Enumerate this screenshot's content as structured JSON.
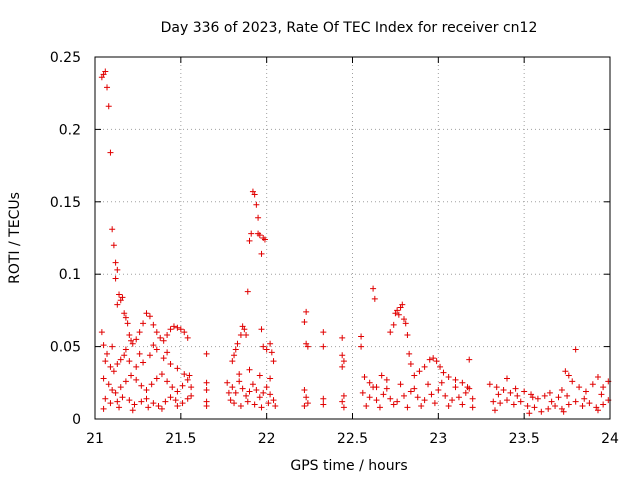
{
  "chart_data": {
    "type": "scatter",
    "title": "Day 336 of 2023, Rate Of TEC Index for receiver cn12",
    "xlabel": "GPS time / hours",
    "ylabel": "ROTI / TECUs",
    "xlim": [
      21,
      24
    ],
    "ylim": [
      0,
      0.25
    ],
    "x_ticks": [
      21,
      21.5,
      22,
      22.5,
      23,
      23.5,
      24
    ],
    "x_tick_labels": [
      "21",
      "21.5",
      "22",
      "22.5",
      "23",
      "23.5",
      "24"
    ],
    "y_ticks": [
      0,
      0.05,
      0.1,
      0.15,
      0.2,
      0.25
    ],
    "y_tick_labels": [
      "0",
      "0.05",
      "0.1",
      "0.15",
      "0.2",
      "0.25"
    ],
    "grid": true,
    "marker": "+",
    "color": "#e00000",
    "series": [
      {
        "name": "ROTI",
        "points": [
          [
            21.04,
            0.236
          ],
          [
            21.05,
            0.238
          ],
          [
            21.06,
            0.24
          ],
          [
            21.07,
            0.229
          ],
          [
            21.08,
            0.216
          ],
          [
            21.09,
            0.184
          ],
          [
            21.1,
            0.131
          ],
          [
            21.11,
            0.12
          ],
          [
            21.12,
            0.108
          ],
          [
            21.13,
            0.103
          ],
          [
            21.12,
            0.097
          ],
          [
            21.14,
            0.086
          ],
          [
            21.15,
            0.082
          ],
          [
            21.16,
            0.084
          ],
          [
            21.13,
            0.079
          ],
          [
            21.17,
            0.073
          ],
          [
            21.18,
            0.07
          ],
          [
            21.19,
            0.066
          ],
          [
            21.2,
            0.058
          ],
          [
            21.21,
            0.054
          ],
          [
            21.22,
            0.052
          ],
          [
            21.24,
            0.055
          ],
          [
            21.26,
            0.06
          ],
          [
            21.28,
            0.066
          ],
          [
            21.3,
            0.073
          ],
          [
            21.32,
            0.071
          ],
          [
            21.34,
            0.065
          ],
          [
            21.36,
            0.06
          ],
          [
            21.38,
            0.056
          ],
          [
            21.4,
            0.054
          ],
          [
            21.42,
            0.058
          ],
          [
            21.44,
            0.062
          ],
          [
            21.46,
            0.064
          ],
          [
            21.48,
            0.063
          ],
          [
            21.5,
            0.062
          ],
          [
            21.52,
            0.06
          ],
          [
            21.54,
            0.056
          ],
          [
            21.04,
            0.06
          ],
          [
            21.05,
            0.051
          ],
          [
            21.07,
            0.045
          ],
          [
            21.06,
            0.04
          ],
          [
            21.09,
            0.036
          ],
          [
            21.11,
            0.033
          ],
          [
            21.13,
            0.038
          ],
          [
            21.15,
            0.041
          ],
          [
            21.17,
            0.044
          ],
          [
            21.2,
            0.04
          ],
          [
            21.24,
            0.036
          ],
          [
            21.28,
            0.039
          ],
          [
            21.32,
            0.044
          ],
          [
            21.36,
            0.048
          ],
          [
            21.4,
            0.042
          ],
          [
            21.44,
            0.038
          ],
          [
            21.48,
            0.035
          ],
          [
            21.52,
            0.031
          ],
          [
            21.1,
            0.05
          ],
          [
            21.18,
            0.048
          ],
          [
            21.26,
            0.045
          ],
          [
            21.34,
            0.051
          ],
          [
            21.42,
            0.046
          ],
          [
            21.05,
            0.028
          ],
          [
            21.08,
            0.024
          ],
          [
            21.1,
            0.02
          ],
          [
            21.12,
            0.018
          ],
          [
            21.15,
            0.022
          ],
          [
            21.18,
            0.026
          ],
          [
            21.21,
            0.03
          ],
          [
            21.24,
            0.027
          ],
          [
            21.27,
            0.023
          ],
          [
            21.3,
            0.02
          ],
          [
            21.33,
            0.024
          ],
          [
            21.36,
            0.028
          ],
          [
            21.39,
            0.031
          ],
          [
            21.42,
            0.026
          ],
          [
            21.45,
            0.022
          ],
          [
            21.48,
            0.019
          ],
          [
            21.51,
            0.023
          ],
          [
            21.54,
            0.027
          ],
          [
            21.06,
            0.014
          ],
          [
            21.09,
            0.011
          ],
          [
            21.13,
            0.012
          ],
          [
            21.16,
            0.015
          ],
          [
            21.2,
            0.013
          ],
          [
            21.23,
            0.01
          ],
          [
            21.27,
            0.012
          ],
          [
            21.3,
            0.014
          ],
          [
            21.34,
            0.011
          ],
          [
            21.37,
            0.009
          ],
          [
            21.41,
            0.012
          ],
          [
            21.44,
            0.015
          ],
          [
            21.47,
            0.013
          ],
          [
            21.51,
            0.011
          ],
          [
            21.54,
            0.014
          ],
          [
            21.05,
            0.007
          ],
          [
            21.14,
            0.008
          ],
          [
            21.22,
            0.006
          ],
          [
            21.31,
            0.008
          ],
          [
            21.39,
            0.007
          ],
          [
            21.48,
            0.009
          ],
          [
            21.56,
            0.016
          ],
          [
            21.56,
            0.022
          ],
          [
            21.55,
            0.03
          ],
          [
            21.65,
            0.045
          ],
          [
            21.65,
            0.025
          ],
          [
            21.65,
            0.02
          ],
          [
            21.65,
            0.012
          ],
          [
            21.65,
            0.009
          ],
          [
            21.77,
            0.025
          ],
          [
            21.78,
            0.018
          ],
          [
            21.79,
            0.013
          ],
          [
            21.8,
            0.04
          ],
          [
            21.81,
            0.044
          ],
          [
            21.82,
            0.048
          ],
          [
            21.83,
            0.052
          ],
          [
            21.85,
            0.058
          ],
          [
            21.86,
            0.064
          ],
          [
            21.87,
            0.062
          ],
          [
            21.88,
            0.058
          ],
          [
            21.89,
            0.088
          ],
          [
            21.9,
            0.123
          ],
          [
            21.91,
            0.128
          ],
          [
            21.92,
            0.157
          ],
          [
            21.93,
            0.155
          ],
          [
            21.94,
            0.148
          ],
          [
            21.95,
            0.139
          ],
          [
            21.95,
            0.128
          ],
          [
            21.96,
            0.127
          ],
          [
            21.97,
            0.114
          ],
          [
            21.98,
            0.125
          ],
          [
            21.99,
            0.124
          ],
          [
            21.97,
            0.062
          ],
          [
            21.98,
            0.05
          ],
          [
            22.0,
            0.048
          ],
          [
            22.02,
            0.052
          ],
          [
            22.03,
            0.046
          ],
          [
            22.04,
            0.04
          ],
          [
            21.8,
            0.022
          ],
          [
            21.82,
            0.018
          ],
          [
            21.84,
            0.026
          ],
          [
            21.86,
            0.021
          ],
          [
            21.88,
            0.016
          ],
          [
            21.9,
            0.019
          ],
          [
            21.92,
            0.024
          ],
          [
            21.94,
            0.02
          ],
          [
            21.96,
            0.015
          ],
          [
            21.98,
            0.018
          ],
          [
            22.0,
            0.022
          ],
          [
            22.02,
            0.017
          ],
          [
            22.04,
            0.013
          ],
          [
            21.81,
            0.011
          ],
          [
            21.85,
            0.009
          ],
          [
            21.89,
            0.012
          ],
          [
            21.93,
            0.01
          ],
          [
            21.97,
            0.008
          ],
          [
            22.01,
            0.011
          ],
          [
            22.05,
            0.009
          ],
          [
            21.84,
            0.031
          ],
          [
            21.9,
            0.034
          ],
          [
            21.96,
            0.03
          ],
          [
            22.02,
            0.028
          ],
          [
            22.23,
            0.074
          ],
          [
            22.22,
            0.067
          ],
          [
            22.23,
            0.052
          ],
          [
            22.24,
            0.05
          ],
          [
            22.22,
            0.02
          ],
          [
            22.23,
            0.015
          ],
          [
            22.24,
            0.011
          ],
          [
            22.22,
            0.009
          ],
          [
            22.33,
            0.06
          ],
          [
            22.33,
            0.05
          ],
          [
            22.33,
            0.014
          ],
          [
            22.33,
            0.01
          ],
          [
            22.44,
            0.056
          ],
          [
            22.44,
            0.044
          ],
          [
            22.45,
            0.04
          ],
          [
            22.44,
            0.036
          ],
          [
            22.45,
            0.016
          ],
          [
            22.44,
            0.012
          ],
          [
            22.45,
            0.008
          ],
          [
            22.55,
            0.057
          ],
          [
            22.55,
            0.05
          ],
          [
            22.57,
            0.029
          ],
          [
            22.6,
            0.025
          ],
          [
            22.62,
            0.09
          ],
          [
            22.63,
            0.083
          ],
          [
            22.64,
            0.022
          ],
          [
            22.67,
            0.03
          ],
          [
            22.7,
            0.027
          ],
          [
            22.72,
            0.06
          ],
          [
            22.74,
            0.065
          ],
          [
            22.75,
            0.073
          ],
          [
            22.76,
            0.075
          ],
          [
            22.77,
            0.072
          ],
          [
            22.78,
            0.077
          ],
          [
            22.79,
            0.079
          ],
          [
            22.8,
            0.069
          ],
          [
            22.81,
            0.066
          ],
          [
            22.82,
            0.058
          ],
          [
            22.83,
            0.045
          ],
          [
            22.84,
            0.038
          ],
          [
            22.86,
            0.03
          ],
          [
            22.89,
            0.033
          ],
          [
            22.92,
            0.036
          ],
          [
            22.95,
            0.041
          ],
          [
            22.97,
            0.042
          ],
          [
            22.99,
            0.04
          ],
          [
            23.01,
            0.036
          ],
          [
            23.03,
            0.032
          ],
          [
            23.06,
            0.029
          ],
          [
            23.1,
            0.027
          ],
          [
            23.14,
            0.025
          ],
          [
            23.17,
            0.022
          ],
          [
            23.18,
            0.041
          ],
          [
            22.56,
            0.018
          ],
          [
            22.6,
            0.015
          ],
          [
            22.64,
            0.013
          ],
          [
            22.68,
            0.017
          ],
          [
            22.72,
            0.014
          ],
          [
            22.76,
            0.012
          ],
          [
            22.8,
            0.016
          ],
          [
            22.84,
            0.019
          ],
          [
            22.88,
            0.015
          ],
          [
            22.92,
            0.013
          ],
          [
            22.96,
            0.017
          ],
          [
            23.0,
            0.02
          ],
          [
            23.04,
            0.016
          ],
          [
            23.08,
            0.013
          ],
          [
            23.12,
            0.015
          ],
          [
            23.16,
            0.018
          ],
          [
            23.2,
            0.014
          ],
          [
            22.58,
            0.009
          ],
          [
            22.66,
            0.008
          ],
          [
            22.74,
            0.01
          ],
          [
            22.82,
            0.008
          ],
          [
            22.9,
            0.009
          ],
          [
            22.98,
            0.011
          ],
          [
            23.06,
            0.009
          ],
          [
            23.14,
            0.01
          ],
          [
            23.2,
            0.008
          ],
          [
            22.62,
            0.022
          ],
          [
            22.7,
            0.021
          ],
          [
            22.78,
            0.024
          ],
          [
            22.86,
            0.021
          ],
          [
            22.94,
            0.024
          ],
          [
            23.02,
            0.025
          ],
          [
            23.1,
            0.022
          ],
          [
            23.18,
            0.021
          ],
          [
            23.3,
            0.024
          ],
          [
            23.34,
            0.022
          ],
          [
            23.38,
            0.02
          ],
          [
            23.4,
            0.028
          ],
          [
            23.42,
            0.018
          ],
          [
            23.46,
            0.016
          ],
          [
            23.5,
            0.019
          ],
          [
            23.54,
            0.017
          ],
          [
            23.58,
            0.014
          ],
          [
            23.62,
            0.016
          ],
          [
            23.66,
            0.012
          ],
          [
            23.7,
            0.015
          ],
          [
            23.72,
            0.02
          ],
          [
            23.74,
            0.033
          ],
          [
            23.76,
            0.03
          ],
          [
            23.78,
            0.026
          ],
          [
            23.8,
            0.048
          ],
          [
            23.82,
            0.022
          ],
          [
            23.86,
            0.019
          ],
          [
            23.9,
            0.024
          ],
          [
            23.93,
            0.029
          ],
          [
            23.96,
            0.022
          ],
          [
            23.99,
            0.026
          ],
          [
            23.32,
            0.012
          ],
          [
            23.36,
            0.011
          ],
          [
            23.4,
            0.013
          ],
          [
            23.44,
            0.01
          ],
          [
            23.48,
            0.012
          ],
          [
            23.52,
            0.009
          ],
          [
            23.56,
            0.008
          ],
          [
            23.6,
            0.005
          ],
          [
            23.64,
            0.007
          ],
          [
            23.68,
            0.009
          ],
          [
            23.72,
            0.007
          ],
          [
            23.76,
            0.01
          ],
          [
            23.8,
            0.012
          ],
          [
            23.84,
            0.009
          ],
          [
            23.88,
            0.011
          ],
          [
            23.92,
            0.008
          ],
          [
            23.96,
            0.01
          ],
          [
            23.99,
            0.013
          ],
          [
            23.35,
            0.017
          ],
          [
            23.45,
            0.021
          ],
          [
            23.55,
            0.015
          ],
          [
            23.65,
            0.018
          ],
          [
            23.75,
            0.016
          ],
          [
            23.85,
            0.014
          ],
          [
            23.95,
            0.017
          ],
          [
            23.33,
            0.006
          ],
          [
            23.53,
            0.004
          ],
          [
            23.73,
            0.005
          ],
          [
            23.93,
            0.006
          ]
        ]
      }
    ]
  }
}
